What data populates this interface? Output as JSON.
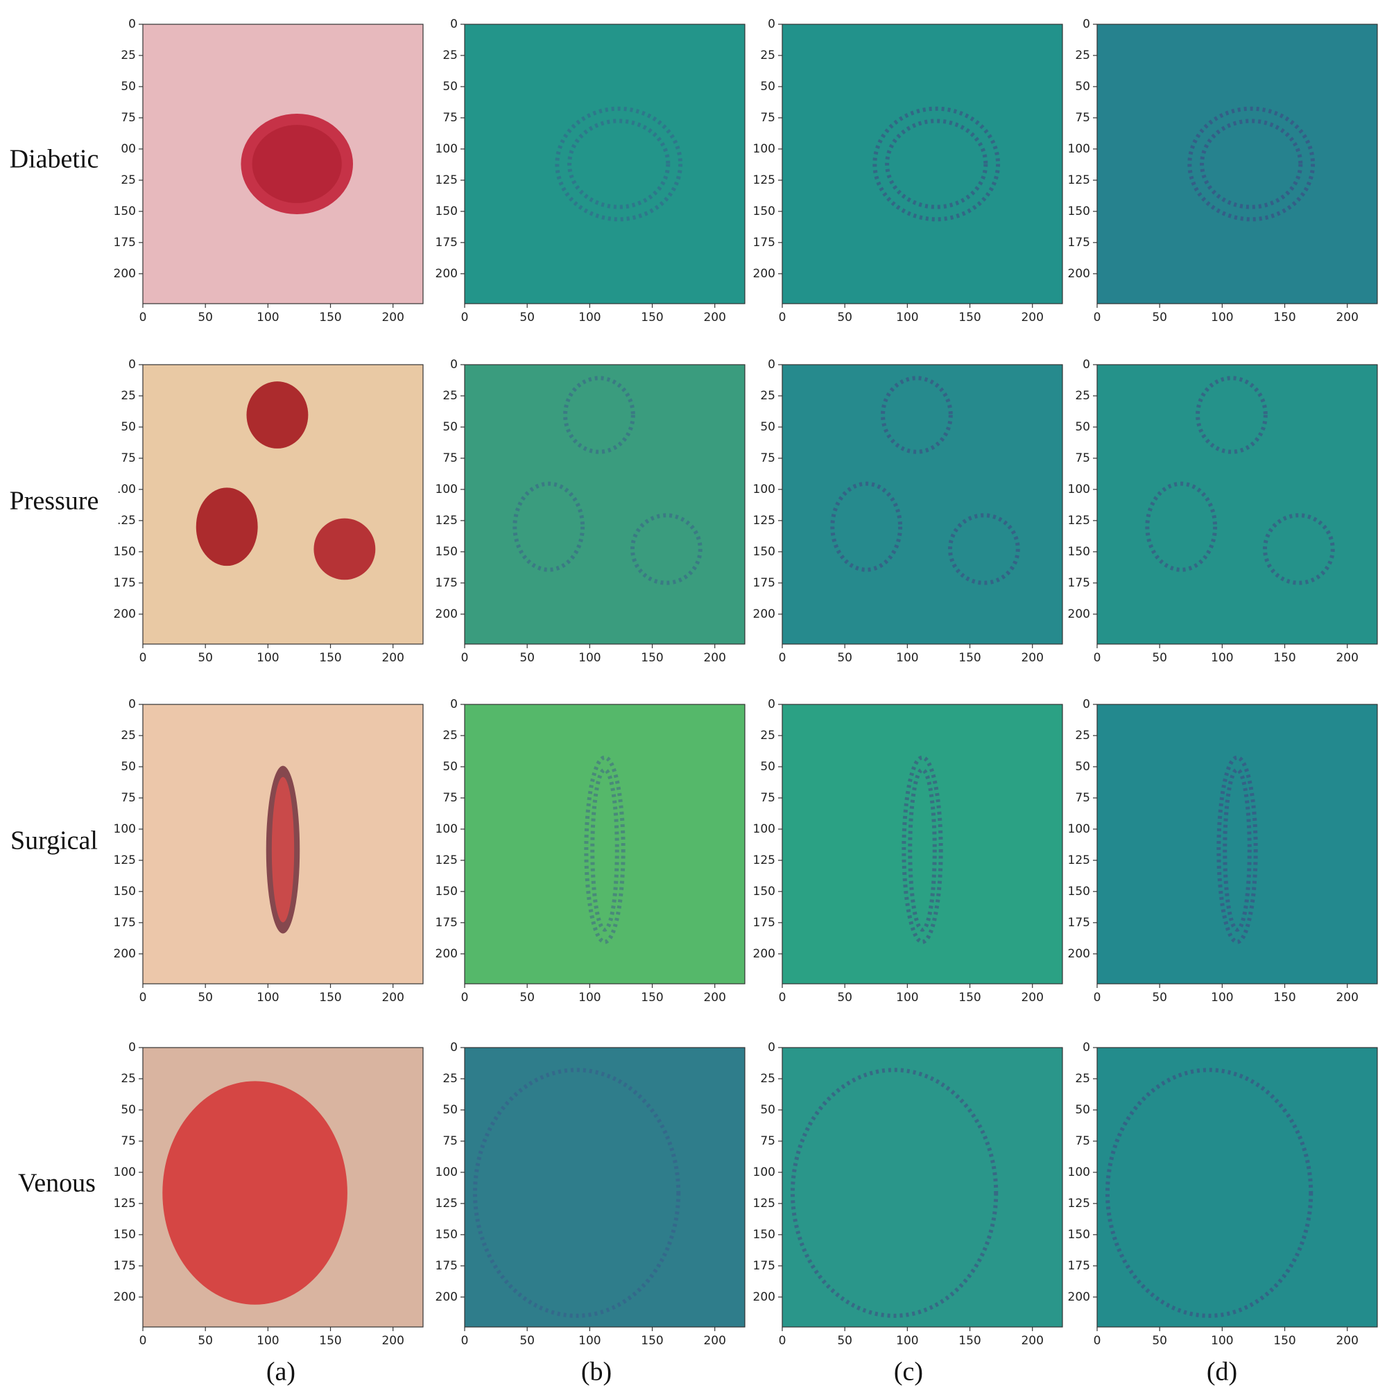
{
  "row_labels": [
    "Diabetic",
    "Pressure",
    "Surgical",
    "Venous"
  ],
  "column_labels": [
    "(a)",
    "(b)",
    "(c)",
    "(d)"
  ],
  "chart_data": [
    {
      "type": "image",
      "color": "#e7b9bd",
      "xlim": [
        0,
        224
      ],
      "ylim": [
        224,
        0
      ],
      "xticks": [
        0,
        50,
        100,
        150,
        200
      ],
      "yticks": [
        0,
        25,
        50,
        75,
        {
          "value": 100,
          "label": "00"
        },
        {
          "value": 125,
          "label": "25"
        },
        150,
        175,
        200
      ]
    },
    {
      "type": "image",
      "color": "#23958a",
      "xlim": [
        0,
        224
      ],
      "ylim": [
        224,
        0
      ],
      "xticks": [
        0,
        50,
        100,
        150,
        200
      ],
      "yticks": [
        0,
        25,
        50,
        75,
        100,
        125,
        150,
        175,
        200
      ]
    },
    {
      "type": "image",
      "color": "#22928b",
      "xlim": [
        0,
        224
      ],
      "ylim": [
        224,
        0
      ],
      "xticks": [
        0,
        50,
        100,
        150,
        200
      ],
      "yticks": [
        0,
        25,
        50,
        75,
        100,
        125,
        150,
        175,
        200
      ]
    },
    {
      "type": "image",
      "color": "#26828e",
      "xlim": [
        0,
        224
      ],
      "ylim": [
        224,
        0
      ],
      "xticks": [
        0,
        50,
        100,
        150,
        200
      ],
      "yticks": [
        0,
        25,
        50,
        75,
        100,
        125,
        150,
        175,
        200
      ]
    },
    {
      "type": "image",
      "color": "#e9c9a4",
      "xlim": [
        0,
        224
      ],
      "ylim": [
        224,
        0
      ],
      "xticks": [
        0,
        50,
        100,
        150,
        200
      ],
      "yticks": [
        0,
        25,
        50,
        75,
        {
          "value": 100,
          "label": ".00"
        },
        {
          "value": 125,
          "label": ".25"
        },
        150,
        175,
        200
      ]
    },
    {
      "type": "image",
      "color": "#3a9c7e",
      "xlim": [
        0,
        224
      ],
      "ylim": [
        224,
        0
      ],
      "xticks": [
        0,
        50,
        100,
        150,
        200
      ],
      "yticks": [
        0,
        25,
        50,
        75,
        100,
        125,
        150,
        175,
        200
      ]
    },
    {
      "type": "image",
      "color": "#268a8d",
      "xlim": [
        0,
        224
      ],
      "ylim": [
        224,
        0
      ],
      "xticks": [
        0,
        50,
        100,
        150,
        200
      ],
      "yticks": [
        0,
        25,
        50,
        75,
        100,
        125,
        150,
        175,
        200
      ]
    },
    {
      "type": "image",
      "color": "#25928a",
      "xlim": [
        0,
        224
      ],
      "ylim": [
        224,
        0
      ],
      "xticks": [
        0,
        50,
        100,
        150,
        200
      ],
      "yticks": [
        0,
        25,
        50,
        75,
        100,
        125,
        150,
        175,
        200
      ]
    },
    {
      "type": "image",
      "color": "#ecc7aa",
      "xlim": [
        0,
        224
      ],
      "ylim": [
        224,
        0
      ],
      "xticks": [
        0,
        50,
        100,
        150,
        200
      ],
      "yticks": [
        0,
        25,
        50,
        75,
        100,
        125,
        150,
        175,
        200
      ]
    },
    {
      "type": "image",
      "color": "#55b86a",
      "xlim": [
        0,
        224
      ],
      "ylim": [
        224,
        0
      ],
      "xticks": [
        0,
        50,
        100,
        150,
        200
      ],
      "yticks": [
        0,
        25,
        50,
        75,
        100,
        125,
        150,
        175,
        200
      ]
    },
    {
      "type": "image",
      "color": "#2ba184",
      "xlim": [
        0,
        224
      ],
      "ylim": [
        224,
        0
      ],
      "xticks": [
        0,
        50,
        100,
        150,
        200
      ],
      "yticks": [
        0,
        25,
        50,
        75,
        100,
        125,
        150,
        175,
        200
      ]
    },
    {
      "type": "image",
      "color": "#23898e",
      "xlim": [
        0,
        224
      ],
      "ylim": [
        224,
        0
      ],
      "xticks": [
        0,
        50,
        100,
        150,
        200
      ],
      "yticks": [
        0,
        25,
        50,
        75,
        100,
        125,
        150,
        175,
        200
      ]
    },
    {
      "type": "image",
      "color": "#d9b4a0",
      "xlim": [
        0,
        224
      ],
      "ylim": [
        224,
        0
      ],
      "xticks": [
        0,
        50,
        100,
        150,
        200
      ],
      "yticks": [
        0,
        25,
        50,
        75,
        100,
        125,
        150,
        175,
        200
      ]
    },
    {
      "type": "image",
      "color": "#2f7d8b",
      "xlim": [
        0,
        224
      ],
      "ylim": [
        224,
        0
      ],
      "xticks": [
        0,
        50,
        100,
        150,
        200
      ],
      "yticks": [
        0,
        25,
        50,
        75,
        100,
        125,
        150,
        175,
        200
      ]
    },
    {
      "type": "image",
      "color": "#2a968a",
      "xlim": [
        0,
        224
      ],
      "ylim": [
        224,
        0
      ],
      "xticks": [
        0,
        50,
        100,
        150,
        200
      ],
      "yticks": [
        0,
        25,
        50,
        75,
        100,
        125,
        150,
        175,
        200
      ]
    },
    {
      "type": "image",
      "color": "#238c8c",
      "xlim": [
        0,
        224
      ],
      "ylim": [
        224,
        0
      ],
      "xticks": [
        0,
        50,
        100,
        150,
        200
      ],
      "yticks": [
        0,
        25,
        50,
        75,
        100,
        125,
        150,
        175,
        200
      ]
    }
  ]
}
